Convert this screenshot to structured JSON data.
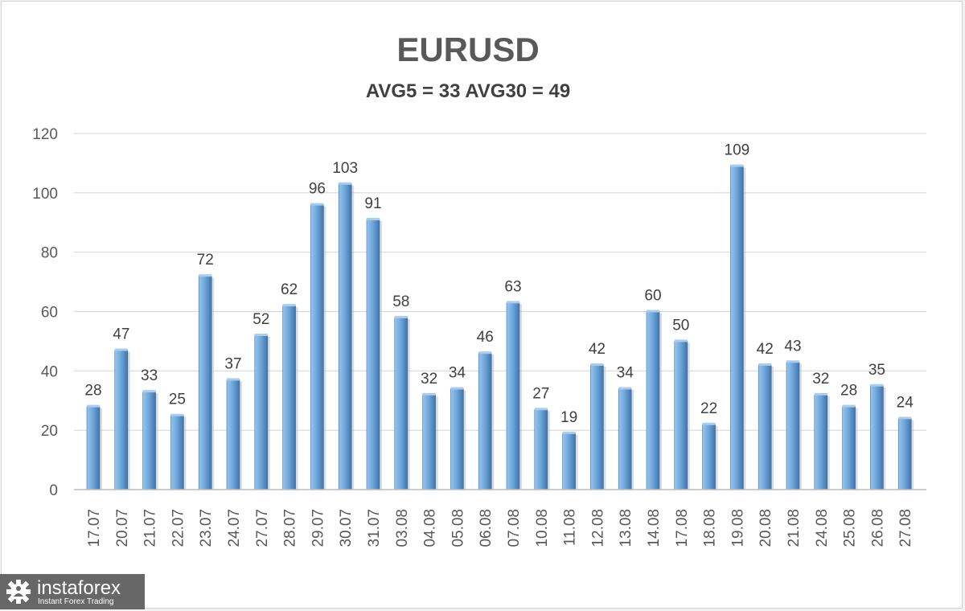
{
  "colors": {
    "bar": "#6fa8dc",
    "bar_dark": "#3f75ad",
    "grid": "#d9d9d9",
    "logo_bg": "#676767"
  },
  "branding": {
    "name": "instaforex",
    "tagline": "Instant Forex Trading",
    "logo_icon": "gear-person-icon"
  },
  "chart_data": {
    "type": "bar",
    "title": "EURUSD",
    "subtitle": "AVG5 = 33 AVG30 = 49",
    "xlabel": "",
    "ylabel": "",
    "ylim": [
      0,
      120
    ],
    "yticks": [
      0,
      20,
      40,
      60,
      80,
      100,
      120
    ],
    "grid": true,
    "legend": "none",
    "categories": [
      "17.07",
      "20.07",
      "21.07",
      "22.07",
      "23.07",
      "24.07",
      "27.07",
      "28.07",
      "29.07",
      "30.07",
      "31.07",
      "03.08",
      "04.08",
      "05.08",
      "06.08",
      "07.08",
      "10.08",
      "11.08",
      "12.08",
      "13.08",
      "14.08",
      "17.08",
      "18.08",
      "19.08",
      "20.08",
      "21.08",
      "24.08",
      "25.08",
      "26.08",
      "27.08"
    ],
    "values": [
      28,
      47,
      33,
      25,
      72,
      37,
      52,
      62,
      96,
      103,
      91,
      58,
      32,
      34,
      46,
      63,
      27,
      19,
      42,
      34,
      60,
      50,
      22,
      109,
      42,
      43,
      32,
      28,
      35,
      24
    ]
  }
}
